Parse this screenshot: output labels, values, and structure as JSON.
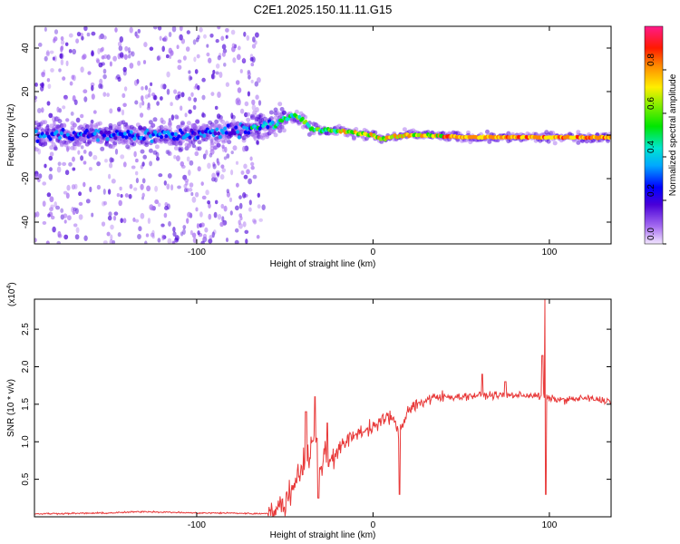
{
  "figure": {
    "title": "C2E1.2025.150.11.11.G15"
  },
  "chart_data": [
    {
      "type": "heatmap",
      "name": "spectrogram",
      "xlabel": "Height of straight line (km)",
      "ylabel": "Frequency (Hz)",
      "xlim": [
        -192,
        135
      ],
      "ylim": [
        -50,
        50
      ],
      "xticks": [
        -100,
        0,
        100
      ],
      "yticks": [
        -40,
        -20,
        0,
        20,
        40
      ],
      "colorbar": {
        "label": "Normalized spectral amplitude",
        "range": [
          0,
          1
        ],
        "ticks": [
          "0.0",
          "0.2",
          "0.4",
          "0.6",
          "0.8"
        ],
        "tick_values": [
          0,
          0.2,
          0.4,
          0.6,
          0.8
        ]
      },
      "ridge": {
        "x": [
          -192,
          -160,
          -130,
          -110,
          -90,
          -70,
          -55,
          -45,
          -40,
          -35,
          -30,
          -20,
          -10,
          0,
          5,
          10,
          20,
          30,
          50,
          70,
          90,
          110,
          135
        ],
        "freq": [
          0,
          0,
          0,
          0,
          1,
          3,
          6,
          9,
          7,
          3,
          2,
          2,
          1,
          0,
          -2,
          -1,
          0,
          0,
          -1,
          -1,
          -1,
          -1,
          -1
        ]
      }
    },
    {
      "type": "line",
      "name": "snr",
      "xlabel": "Height of straight line (km)",
      "ylabel": "SNR (10 * v/v)",
      "scale_label": "(x10",
      "scale_exp": "4",
      "xlim": [
        -192,
        135
      ],
      "ylim": [
        0,
        2.9
      ],
      "xticks": [
        -100,
        0,
        100
      ],
      "yticks": [
        "0.5",
        "1.0",
        "1.5",
        "2.0",
        "2.5"
      ],
      "ytick_values": [
        0.5,
        1.0,
        1.5,
        2.0,
        2.5
      ],
      "series": [
        {
          "color": "#e83a3a",
          "envelope_x": [
            -192,
            -150,
            -130,
            -100,
            -80,
            -65,
            -55,
            -48,
            -44,
            -40,
            -36,
            -33,
            -30,
            -27,
            -25,
            -20,
            -10,
            0,
            10,
            15,
            20,
            30,
            40,
            50,
            60,
            70,
            80,
            90,
            95,
            97,
            99,
            105,
            110,
            120,
            135
          ],
          "envelope_y": [
            0.04,
            0.05,
            0.07,
            0.05,
            0.05,
            0.04,
            0.06,
            0.25,
            0.5,
            0.7,
            0.85,
            1.1,
            0.65,
            0.85,
            0.75,
            0.9,
            1.1,
            1.2,
            1.35,
            1.1,
            1.45,
            1.55,
            1.6,
            1.6,
            1.62,
            1.62,
            1.62,
            1.62,
            1.6,
            1.6,
            1.58,
            1.56,
            1.56,
            1.58,
            1.54
          ],
          "spikes": [
            {
              "x": -33,
              "y": 1.6
            },
            {
              "x": -38,
              "y": 1.4
            },
            {
              "x": -31,
              "y": 0.25
            },
            {
              "x": -26,
              "y": 1.25
            },
            {
              "x": 15,
              "y": 0.3
            },
            {
              "x": 62,
              "y": 1.9
            },
            {
              "x": 75,
              "y": 1.8
            },
            {
              "x": 96,
              "y": 2.15
            },
            {
              "x": 97.5,
              "y": 2.9
            },
            {
              "x": 98,
              "y": 0.3
            }
          ]
        }
      ]
    }
  ]
}
